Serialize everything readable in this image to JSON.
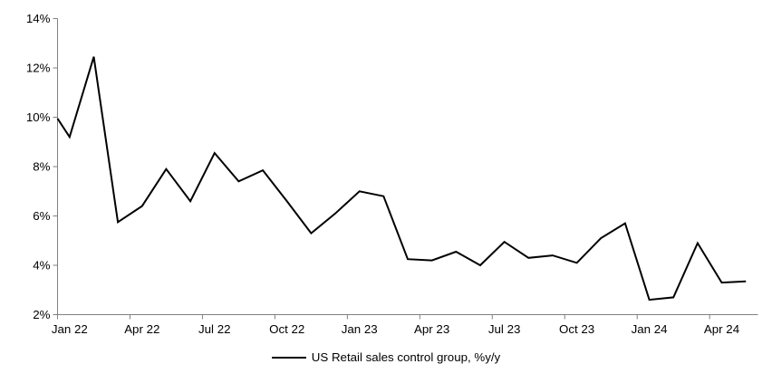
{
  "chart_data": {
    "type": "line",
    "title": "",
    "legend": [
      "US Retail sales control group, %y/y"
    ],
    "legend_position": "bottom-center",
    "grid": false,
    "x": [
      "Jan 22",
      "Feb 22",
      "Mar 22",
      "Apr 22",
      "May 22",
      "Jun 22",
      "Jul 22",
      "Aug 22",
      "Sep 22",
      "Oct 22",
      "Nov 22",
      "Dec 22",
      "Jan 23",
      "Feb 23",
      "Mar 23",
      "Apr 23",
      "May 23",
      "Jun 23",
      "Jul 23",
      "Aug 23",
      "Sep 23",
      "Oct 23",
      "Nov 23",
      "Dec 23",
      "Jan 24",
      "Feb 24",
      "Mar 24",
      "Apr 24",
      "May 24"
    ],
    "series": [
      {
        "name": "US Retail sales control group, %y/y",
        "values": [
          9.2,
          12.45,
          5.75,
          6.4,
          7.9,
          6.6,
          8.55,
          7.4,
          7.85,
          6.6,
          5.3,
          6.1,
          7.0,
          6.8,
          4.25,
          4.2,
          4.55,
          4.0,
          4.95,
          4.3,
          4.4,
          4.1,
          5.1,
          5.7,
          2.6,
          2.7,
          4.9,
          3.3,
          3.35
        ]
      }
    ],
    "axis_start_value": 9.95,
    "ylim": [
      2,
      14
    ],
    "y_ticks": [
      2,
      4,
      6,
      8,
      10,
      12,
      14
    ],
    "y_tick_labels": [
      "2%",
      "4%",
      "6%",
      "8%",
      "10%",
      "12%",
      "14%"
    ],
    "x_tick_labels": [
      "Jan 22",
      "Apr 22",
      "Jul 22",
      "Oct 22",
      "Jan 23",
      "Apr 23",
      "Jul 23",
      "Oct 23",
      "Jan 24",
      "Apr 24"
    ],
    "x_tick_every_months": 3,
    "xlabel": "",
    "ylabel": "",
    "colors": {
      "line": "#000000",
      "axis": "#808080",
      "text": "#000000",
      "background": "#ffffff"
    }
  }
}
